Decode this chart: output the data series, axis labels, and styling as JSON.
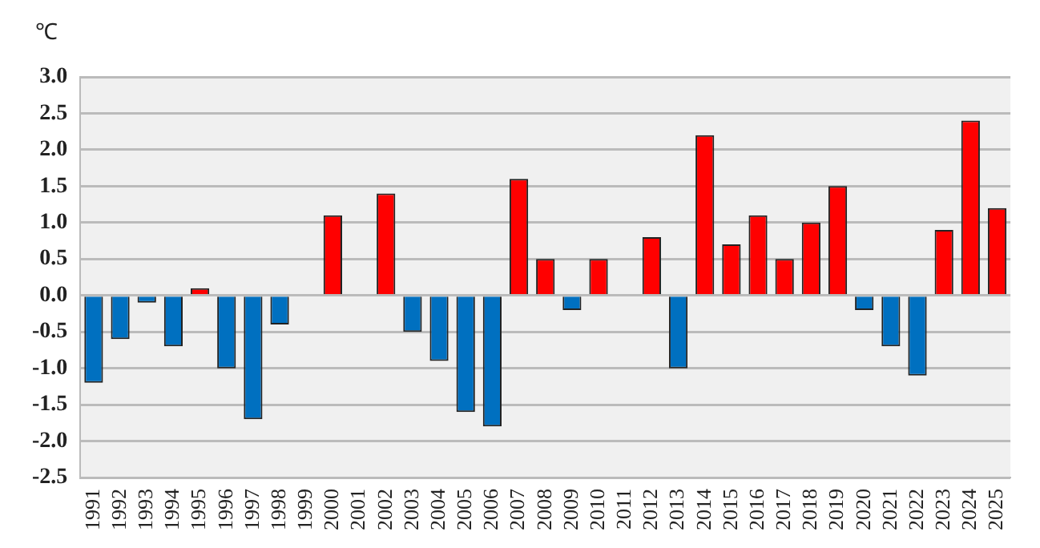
{
  "chart_data": {
    "type": "bar",
    "ylabel": "℃",
    "categories": [
      "1991",
      "1992",
      "1993",
      "1994",
      "1995",
      "1996",
      "1997",
      "1998",
      "1999",
      "2000",
      "2001",
      "2002",
      "2003",
      "2004",
      "2005",
      "2006",
      "2007",
      "2008",
      "2009",
      "2010",
      "2011",
      "2012",
      "2013",
      "2014",
      "2015",
      "2016",
      "2017",
      "2018",
      "2019",
      "2020",
      "2021",
      "2022",
      "2023",
      "2024",
      "2025"
    ],
    "values": [
      -1.2,
      -0.6,
      -0.1,
      -0.7,
      0.1,
      -1.0,
      -1.7,
      -0.4,
      0,
      1.1,
      0,
      1.4,
      -0.5,
      -0.9,
      -1.6,
      -1.8,
      1.6,
      0.5,
      -0.2,
      0.5,
      0,
      0.8,
      -1.0,
      2.2,
      0.7,
      1.1,
      0.5,
      1.0,
      1.5,
      -0.2,
      -0.7,
      -1.1,
      0.9,
      2.4,
      1.2
    ],
    "colors": [
      "#0070c0",
      "#0070c0",
      "#0070c0",
      "#0070c0",
      "#ff0000",
      "#0070c0",
      "#0070c0",
      "#0070c0",
      "#ff0000",
      "#ff0000",
      "#ff0000",
      "#ff0000",
      "#0070c0",
      "#0070c0",
      "#0070c0",
      "#0070c0",
      "#ff0000",
      "#ff0000",
      "#0070c0",
      "#ff0000",
      "#ff0000",
      "#ff0000",
      "#0070c0",
      "#ff0000",
      "#ff0000",
      "#ff0000",
      "#ff0000",
      "#ff0000",
      "#ff0000",
      "#0070c0",
      "#0070c0",
      "#0070c0",
      "#ff0000",
      "#ff0000",
      "#ff0000"
    ],
    "ylim": [
      -2.5,
      3.0
    ],
    "yticks": [
      {
        "value": -2.5,
        "label": "-2.5"
      },
      {
        "value": -2,
        "label": "-2.0"
      },
      {
        "value": -1.5,
        "label": "-1.5"
      },
      {
        "value": -1,
        "label": "-1.0"
      },
      {
        "value": -0.5,
        "label": "-0.5"
      },
      {
        "value": 0,
        "label": "0.0"
      },
      {
        "value": 0.5,
        "label": "0.5"
      },
      {
        "value": 1,
        "label": "1.0"
      },
      {
        "value": 1.5,
        "label": "1.5"
      },
      {
        "value": 2,
        "label": "2.0"
      },
      {
        "value": 2.5,
        "label": "2.5"
      },
      {
        "value": 3,
        "label": "3.0"
      }
    ],
    "grid": "y",
    "legend": false
  }
}
